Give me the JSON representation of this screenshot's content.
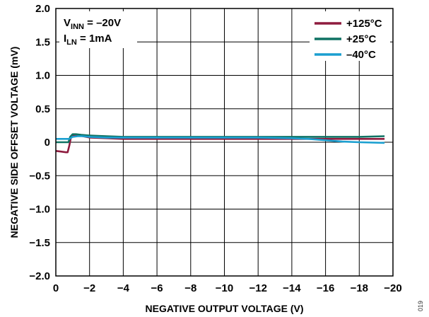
{
  "chart_data": {
    "type": "line",
    "title": "",
    "xlabel": "NEGATIVE OUTPUT VOLTAGE (V)",
    "ylabel": "NEGATIVE SIDE OFFSET VOLTAGE (mV)",
    "xlim": [
      0,
      -20
    ],
    "ylim": [
      -2.0,
      2.0
    ],
    "xticks": [
      0,
      -2,
      -4,
      -6,
      -8,
      -10,
      -12,
      -14,
      -16,
      -18,
      -20
    ],
    "xtick_labels": [
      "0",
      "−2",
      "−4",
      "−6",
      "−8",
      "−10",
      "−12",
      "−14",
      "−16",
      "−18",
      "−20"
    ],
    "yticks": [
      -2.0,
      -1.5,
      -1.0,
      -0.5,
      0,
      0.5,
      1.0,
      1.5,
      2.0
    ],
    "ytick_labels": [
      "−2.0",
      "−1.5",
      "−1.0",
      "−0.5",
      "0",
      "0.5",
      "1.0",
      "1.5",
      "2.0"
    ],
    "grid": true,
    "legend_position": "top-right",
    "annotations": [
      {
        "main": "V",
        "sub": "INN",
        "rest": " = –20V"
      },
      {
        "main": "I",
        "sub": "LN",
        "rest": " = 1mA"
      }
    ],
    "series": [
      {
        "name": "+125°C",
        "color": "#8e1b3e",
        "points": [
          [
            0,
            -0.13
          ],
          [
            -0.3,
            -0.14
          ],
          [
            -0.6,
            -0.15
          ],
          [
            -0.7,
            -0.15
          ],
          [
            -0.8,
            -0.05
          ],
          [
            -0.9,
            0.08
          ],
          [
            -1.1,
            0.11
          ],
          [
            -1.3,
            0.11
          ],
          [
            -1.6,
            0.09
          ],
          [
            -2,
            0.07
          ],
          [
            -3,
            0.06
          ],
          [
            -4,
            0.05
          ],
          [
            -6,
            0.05
          ],
          [
            -8,
            0.05
          ],
          [
            -10,
            0.05
          ],
          [
            -12,
            0.05
          ],
          [
            -14,
            0.05
          ],
          [
            -16,
            0.05
          ],
          [
            -18,
            0.05
          ],
          [
            -19.5,
            0.05
          ]
        ]
      },
      {
        "name": "+25°C",
        "color": "#0f7263",
        "points": [
          [
            0,
            0.0
          ],
          [
            -0.5,
            0.0
          ],
          [
            -0.75,
            0.0
          ],
          [
            -0.85,
            0.08
          ],
          [
            -1.0,
            0.12
          ],
          [
            -1.2,
            0.12
          ],
          [
            -1.5,
            0.11
          ],
          [
            -2,
            0.1
          ],
          [
            -3,
            0.09
          ],
          [
            -4,
            0.08
          ],
          [
            -6,
            0.08
          ],
          [
            -8,
            0.08
          ],
          [
            -10,
            0.08
          ],
          [
            -12,
            0.08
          ],
          [
            -14,
            0.08
          ],
          [
            -16,
            0.08
          ],
          [
            -18,
            0.08
          ],
          [
            -19.5,
            0.09
          ]
        ]
      },
      {
        "name": "–40°C",
        "color": "#1b9fd0",
        "points": [
          [
            0,
            0.05
          ],
          [
            -0.5,
            0.05
          ],
          [
            -0.8,
            0.05
          ],
          [
            -1.0,
            0.08
          ],
          [
            -1.3,
            0.09
          ],
          [
            -1.6,
            0.09
          ],
          [
            -2,
            0.08
          ],
          [
            -3,
            0.07
          ],
          [
            -4,
            0.07
          ],
          [
            -6,
            0.07
          ],
          [
            -8,
            0.07
          ],
          [
            -10,
            0.07
          ],
          [
            -12,
            0.07
          ],
          [
            -14,
            0.06
          ],
          [
            -15,
            0.05
          ],
          [
            -16,
            0.03
          ],
          [
            -17,
            0.01
          ],
          [
            -18,
            0.0
          ],
          [
            -19.5,
            -0.01
          ]
        ]
      }
    ]
  },
  "figure_id": "019"
}
